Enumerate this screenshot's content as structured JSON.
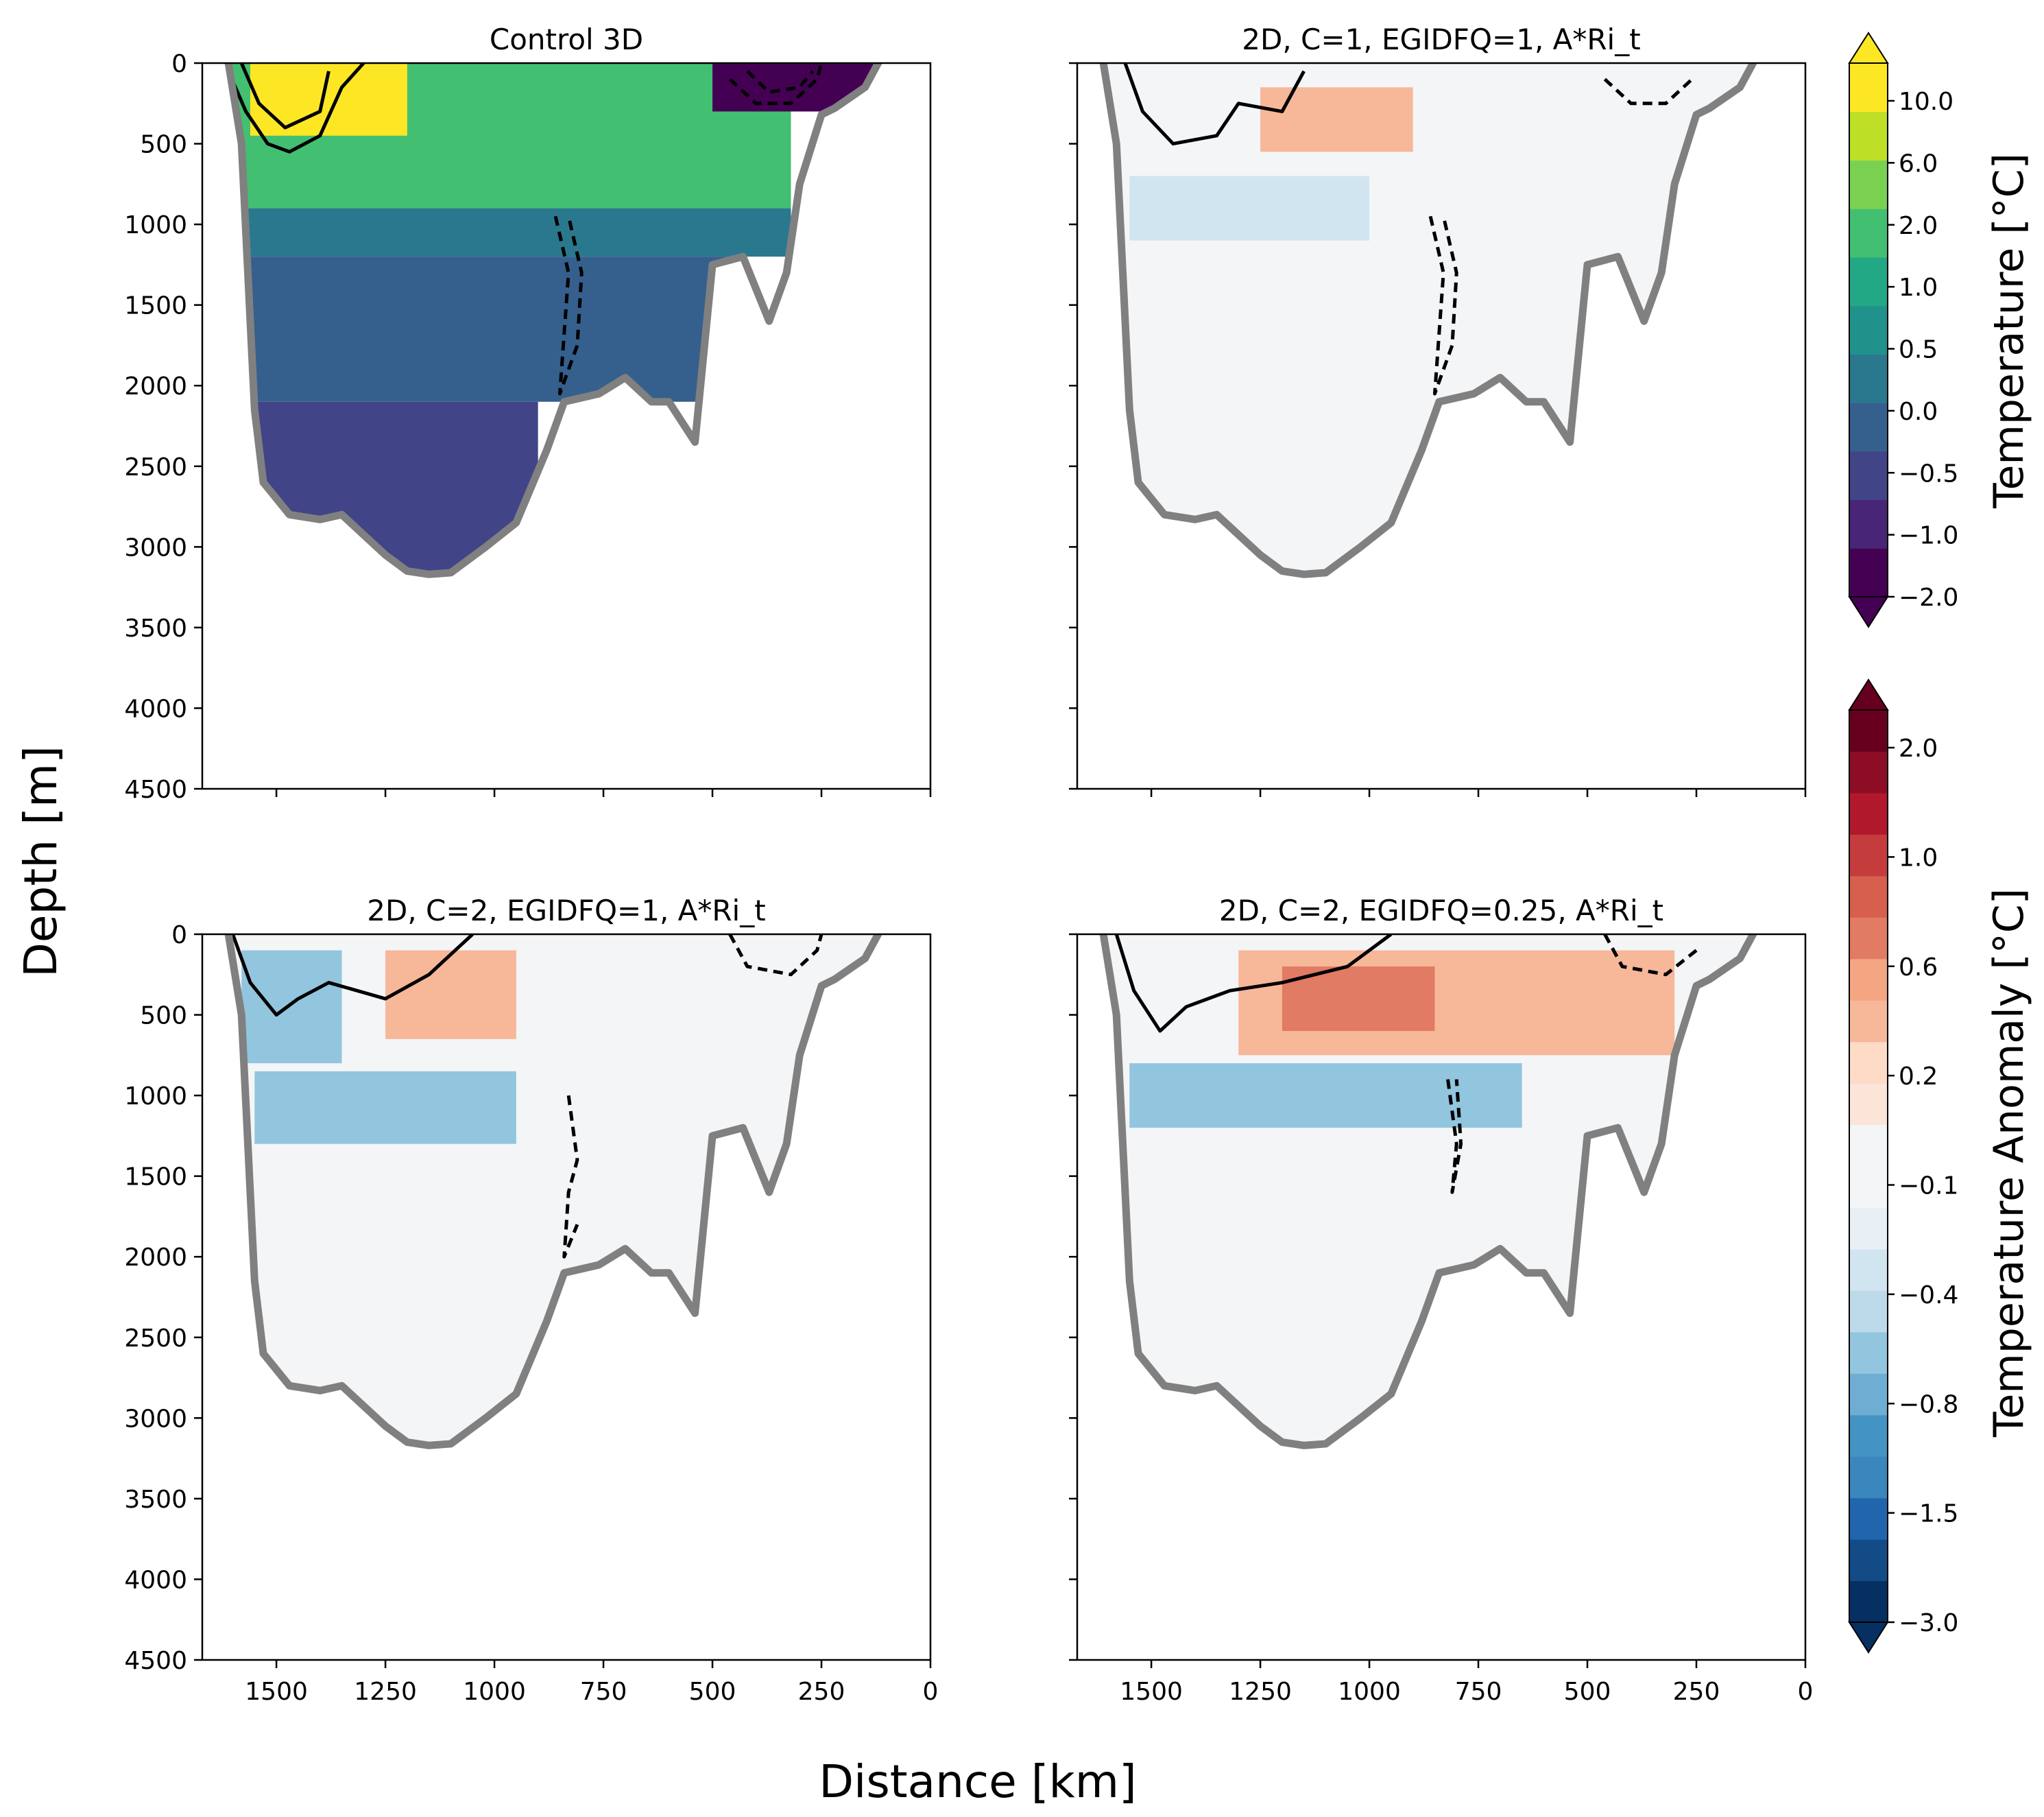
{
  "figure": {
    "xlabel": "Distance [km]",
    "ylabel": "Depth [m]"
  },
  "colorbars": {
    "temperature": {
      "label": "Temperature [°C]",
      "ticks": [
        "10.0",
        "6.0",
        "2.0",
        "1.0",
        "0.5",
        "0.0",
        "−0.5",
        "−1.0",
        "−2.0"
      ],
      "colors": [
        "#440154",
        "#482576",
        "#414487",
        "#35608d",
        "#2a788e",
        "#21918c",
        "#22a884",
        "#43bf71",
        "#7ad151",
        "#bddf26",
        "#fde725"
      ]
    },
    "anomaly": {
      "label": "Temperature Anomaly [°C]",
      "ticks": [
        "2.0",
        "1.0",
        "0.6",
        "0.2",
        "−0.1",
        "−0.4",
        "−0.8",
        "−1.5",
        "−3.0"
      ],
      "colors": [
        "#053061",
        "#134b87",
        "#2166ac",
        "#3a87bd",
        "#4393c3",
        "#6fadd2",
        "#92c5de",
        "#bcdaea",
        "#d1e5f0",
        "#e8f0f5",
        "#f4f5f6",
        "#f4f5f6",
        "#fbe5d8",
        "#fddbc7",
        "#f7b799",
        "#f4a582",
        "#e27b63",
        "#d6604d",
        "#c43c3c",
        "#b2182b",
        "#8c0d25",
        "#67001f"
      ]
    }
  },
  "chart_data": [
    {
      "type": "heatmap",
      "title": "Control 3D",
      "xlabel": "Distance [km]",
      "ylabel": "Depth [m]",
      "xlim": [
        1670,
        0
      ],
      "ylim": [
        4500,
        0
      ],
      "xticks": [
        1500,
        1250,
        1000,
        750,
        500,
        250,
        0
      ],
      "yticks": [
        0,
        500,
        1000,
        1500,
        2000,
        2500,
        3000,
        3500,
        4000,
        4500
      ],
      "colormap": "temperature",
      "layers": [
        {
          "name": "upper-layer-1",
          "value": 2.0,
          "depth": [
            0,
            550
          ],
          "dist": [
            1630,
            950
          ]
        },
        {
          "name": "upper-layer-2",
          "value": 1.0,
          "depth": [
            0,
            900
          ],
          "dist": [
            1600,
            320
          ]
        },
        {
          "name": "mid-layer",
          "value": 0.0,
          "depth": [
            900,
            1200
          ],
          "dist": [
            1600,
            320
          ]
        },
        {
          "name": "deep-layer",
          "value": -0.5,
          "depth": [
            1200,
            2100
          ],
          "dist": [
            1600,
            450
          ]
        },
        {
          "name": "bottom-layer",
          "value": -1.0,
          "depth": [
            2100,
            3200
          ],
          "dist": [
            1600,
            900
          ]
        },
        {
          "name": "surface-warm",
          "value": 6.0,
          "depth": [
            0,
            450
          ],
          "dist": [
            1560,
            1200
          ]
        },
        {
          "name": "surface-cold",
          "value": -2.0,
          "depth": [
            0,
            300
          ],
          "dist": [
            500,
            130
          ]
        }
      ],
      "bathymetry": {
        "distance_km": [
          1610,
          1580,
          1550,
          1530,
          1470,
          1400,
          1350,
          1250,
          1200,
          1150,
          1100,
          1020,
          950,
          880,
          840,
          760,
          700,
          640,
          600,
          540,
          500,
          430,
          370,
          330,
          300,
          250,
          220,
          150,
          120
        ],
        "depth_m": [
          0,
          500,
          2150,
          2600,
          2800,
          2830,
          2800,
          3050,
          3150,
          3170,
          3160,
          3000,
          2850,
          2400,
          2100,
          2050,
          1950,
          2100,
          2100,
          2350,
          1250,
          1200,
          1600,
          1300,
          750,
          320,
          280,
          150,
          0
        ]
      },
      "contours": [
        {
          "style": "solid",
          "points": [
            [
              1610,
              50
            ],
            [
              1570,
              300
            ],
            [
              1520,
              500
            ],
            [
              1470,
              550
            ],
            [
              1400,
              450
            ],
            [
              1350,
              150
            ],
            [
              1300,
              0
            ]
          ]
        },
        {
          "style": "solid",
          "points": [
            [
              1580,
              0
            ],
            [
              1540,
              250
            ],
            [
              1480,
              400
            ],
            [
              1400,
              300
            ],
            [
              1380,
              50
            ]
          ]
        },
        {
          "style": "dashed",
          "points": [
            [
              860,
              950
            ],
            [
              830,
              1300
            ],
            [
              850,
              2050
            ],
            [
              810,
              1750
            ],
            [
              800,
              1300
            ],
            [
              830,
              950
            ]
          ]
        },
        {
          "style": "dashed",
          "points": [
            [
              460,
              100
            ],
            [
              400,
              250
            ],
            [
              320,
              250
            ],
            [
              260,
              100
            ],
            [
              250,
              0
            ]
          ]
        },
        {
          "style": "dashed",
          "points": [
            [
              420,
              50
            ],
            [
              370,
              180
            ],
            [
              300,
              150
            ],
            [
              270,
              50
            ]
          ]
        }
      ]
    },
    {
      "type": "heatmap",
      "title": "2D, C=1, EGIDFQ=1, A*Ri_t",
      "xlabel": "Distance [km]",
      "ylabel": "Depth [m]",
      "xlim": [
        1670,
        0
      ],
      "ylim": [
        4500,
        0
      ],
      "xticks": [
        1500,
        1250,
        1000,
        750,
        500,
        250,
        0
      ],
      "yticks": [
        0,
        500,
        1000,
        1500,
        2000,
        2500,
        3000,
        3500,
        4000,
        4500
      ],
      "colormap": "anomaly",
      "patches": [
        {
          "name": "warm-upper",
          "value": 0.2,
          "depth": [
            50,
            700
          ],
          "dist": [
            1300,
            250
          ]
        },
        {
          "name": "warm-core",
          "value": 0.6,
          "depth": [
            150,
            550
          ],
          "dist": [
            1250,
            900
          ]
        },
        {
          "name": "cool-mid",
          "value": -0.1,
          "depth": [
            700,
            1100
          ],
          "dist": [
            1550,
            1000
          ]
        }
      ],
      "bathymetry": "same as Control 3D",
      "contours": [
        {
          "style": "solid",
          "points": [
            [
              1560,
              0
            ],
            [
              1520,
              300
            ],
            [
              1450,
              500
            ],
            [
              1350,
              450
            ],
            [
              1300,
              250
            ],
            [
              1200,
              300
            ],
            [
              1150,
              50
            ]
          ]
        },
        {
          "style": "dashed",
          "points": [
            [
              860,
              950
            ],
            [
              830,
              1300
            ],
            [
              850,
              2050
            ],
            [
              810,
              1750
            ],
            [
              800,
              1300
            ],
            [
              830,
              950
            ]
          ]
        },
        {
          "style": "dashed",
          "points": [
            [
              460,
              100
            ],
            [
              400,
              250
            ],
            [
              320,
              250
            ],
            [
              260,
              100
            ]
          ]
        }
      ]
    },
    {
      "type": "heatmap",
      "title": "2D, C=2, EGIDFQ=1, A*Ri_t",
      "xlabel": "Distance [km]",
      "ylabel": "Depth [m]",
      "xlim": [
        1670,
        0
      ],
      "ylim": [
        4500,
        0
      ],
      "xticks": [
        1500,
        1250,
        1000,
        750,
        500,
        250,
        0
      ],
      "yticks": [
        0,
        500,
        1000,
        1500,
        2000,
        2500,
        3000,
        3500,
        4000,
        4500
      ],
      "colormap": "anomaly",
      "patches": [
        {
          "name": "warm-upper",
          "value": 0.2,
          "depth": [
            50,
            750
          ],
          "dist": [
            1300,
            650
          ]
        },
        {
          "name": "warm-core",
          "value": 0.6,
          "depth": [
            100,
            650
          ],
          "dist": [
            1250,
            950
          ]
        },
        {
          "name": "cool-upper",
          "value": -0.4,
          "depth": [
            100,
            800
          ],
          "dist": [
            1580,
            1350
          ]
        },
        {
          "name": "cool-mid",
          "value": -0.4,
          "depth": [
            850,
            1300
          ],
          "dist": [
            1550,
            950
          ]
        }
      ],
      "bathymetry": "same as Control 3D",
      "contours": [
        {
          "style": "solid",
          "points": [
            [
              1600,
              0
            ],
            [
              1560,
              300
            ],
            [
              1500,
              500
            ],
            [
              1450,
              400
            ],
            [
              1380,
              300
            ],
            [
              1250,
              400
            ],
            [
              1150,
              250
            ],
            [
              1050,
              0
            ]
          ]
        },
        {
          "style": "dashed",
          "points": [
            [
              830,
              1000
            ],
            [
              810,
              1400
            ],
            [
              830,
              1600
            ],
            [
              840,
              2000
            ],
            [
              810,
              1800
            ]
          ]
        },
        {
          "style": "dashed",
          "points": [
            [
              460,
              0
            ],
            [
              420,
              200
            ],
            [
              320,
              250
            ],
            [
              260,
              100
            ],
            [
              250,
              0
            ]
          ]
        }
      ]
    },
    {
      "type": "heatmap",
      "title": "2D, C=2, EGIDFQ=0.25, A*Ri_t",
      "xlabel": "Distance [km]",
      "ylabel": "Depth [m]",
      "xlim": [
        1670,
        0
      ],
      "ylim": [
        4500,
        0
      ],
      "xticks": [
        1500,
        1250,
        1000,
        750,
        500,
        250,
        0
      ],
      "yticks": [
        0,
        500,
        1000,
        1500,
        2000,
        2500,
        3000,
        3500,
        4000,
        4500
      ],
      "colormap": "anomaly",
      "patches": [
        {
          "name": "warm-upper",
          "value": 0.2,
          "depth": [
            50,
            800
          ],
          "dist": [
            1350,
            250
          ]
        },
        {
          "name": "warm-core",
          "value": 0.6,
          "depth": [
            100,
            750
          ],
          "dist": [
            1300,
            300
          ]
        },
        {
          "name": "warm-max",
          "value": 1.0,
          "depth": [
            200,
            600
          ],
          "dist": [
            1200,
            850
          ]
        },
        {
          "name": "cool-mid",
          "value": -0.4,
          "depth": [
            800,
            1200
          ],
          "dist": [
            1550,
            650
          ]
        }
      ],
      "bathymetry": "same as Control 3D",
      "contours": [
        {
          "style": "solid",
          "points": [
            [
              1580,
              0
            ],
            [
              1540,
              350
            ],
            [
              1480,
              600
            ],
            [
              1420,
              450
            ],
            [
              1320,
              350
            ],
            [
              1200,
              300
            ],
            [
              1050,
              200
            ],
            [
              950,
              0
            ]
          ]
        },
        {
          "style": "dashed",
          "points": [
            [
              820,
              900
            ],
            [
              800,
              1300
            ],
            [
              810,
              1600
            ],
            [
              790,
              1300
            ],
            [
              800,
              900
            ]
          ]
        },
        {
          "style": "dashed",
          "points": [
            [
              460,
              0
            ],
            [
              420,
              200
            ],
            [
              320,
              250
            ],
            [
              250,
              100
            ]
          ]
        }
      ]
    }
  ]
}
